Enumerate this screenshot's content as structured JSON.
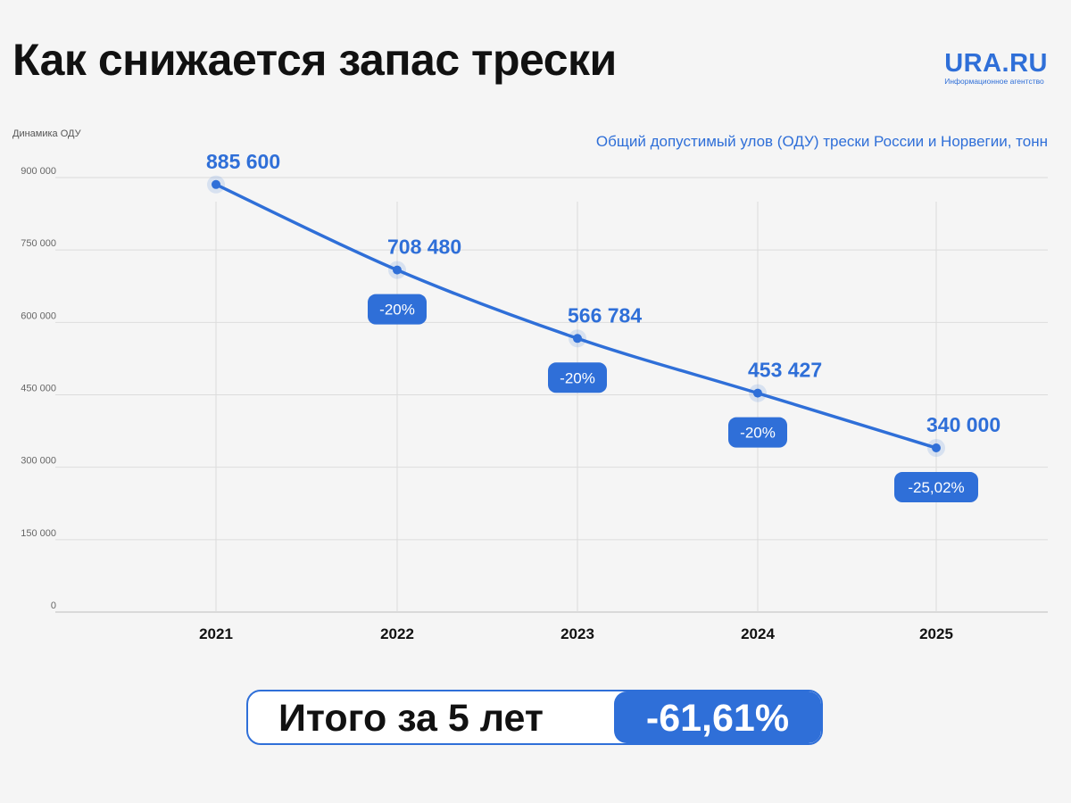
{
  "header": {
    "title": "Как снижается запас трески",
    "logo_name": "URA.RU",
    "logo_subtitle": "Информационное агентство"
  },
  "chart_data": {
    "type": "line",
    "title": "Общий допустимый улов (ОДУ) трески России и Норвегии, тонн",
    "ylabel": "Динамика ОДУ",
    "categories": [
      "2021",
      "2022",
      "2023",
      "2024",
      "2025"
    ],
    "series": [
      {
        "values": [
          885600,
          708480,
          566784,
          453427,
          340000
        ]
      }
    ],
    "data_labels": [
      "885 600",
      "708 480",
      "566 784",
      "453 427",
      "340 000"
    ],
    "change_labels": [
      "",
      "-20%",
      "-20%",
      "-20%",
      "-25,02%"
    ],
    "ylim": [
      0,
      900000
    ],
    "yticks": [
      0,
      150000,
      300000,
      450000,
      600000,
      750000,
      900000
    ],
    "ytick_labels": [
      "0",
      "150 000",
      "300 000",
      "450 000",
      "600 000",
      "750 000",
      "900 000"
    ],
    "grid": true,
    "legend": "none",
    "colors": {
      "line": "#2f6fd8",
      "grid": "#dcdcdc",
      "accent": "#2f6fd8"
    }
  },
  "summary": {
    "label": "Итого за 5 лет",
    "value": "-61,61%"
  }
}
